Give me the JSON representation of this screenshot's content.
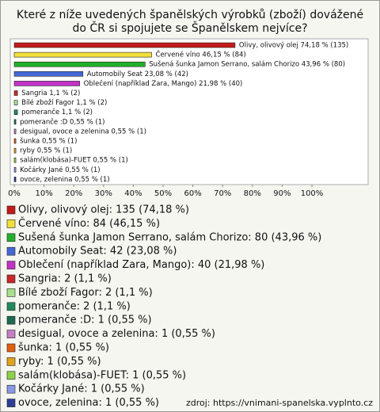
{
  "chart_data": {
    "type": "hbar",
    "title": "Které z níže uvedených španělských výrobků (zboží) dovážené do ČR si spojujete se Španělskem nejvíce?",
    "values": [
      74.18,
      46.15,
      43.96,
      23.08,
      21.98,
      1.1,
      1.1,
      1.1,
      0.55,
      0.55,
      0.55,
      0.55,
      0.55,
      0.55,
      0.55
    ],
    "value_labels": [
      "Olivy, olivový olej 74,18 % (135)",
      "Červené víno 46,15 % (84)",
      "Sušená šunka Jamon Serrano, salám Chorizo 43,96 % (80)",
      "Automobily Seat 23,08 % (42)",
      "Oblečení (například Zara, Mango) 21,98 % (40)",
      "Sangria 1,1 % (2)",
      "Bílé zboží Fagor 1,1 % (2)",
      "pomeranče 1,1 % (2)",
      "pomeranče :D 0,55 % (1)",
      "desigual, ovoce a zelenina 0,55 % (1)",
      "šunka 0,55 % (1)",
      "ryby 0,55 % (1)",
      "salám(klobása)-FUET 0,55 % (1)",
      "Kočárky Jané 0,55 % (1)",
      "ovoce, zelenina 0,55 % (1)"
    ],
    "legend_labels": [
      "Olivy, olivový olej: 135 (74,18 %)",
      "Červené víno: 84 (46,15 %)",
      "Sušená šunka Jamon Serrano, salám Chorizo: 80 (43,96 %)",
      "Automobily Seat: 42 (23,08 %)",
      "Oblečení (například Zara, Mango): 40 (21,98 %)",
      "Sangria: 2 (1,1 %)",
      "Bílé zboží Fagor: 2 (1,1 %)",
      "pomeranče: 2 (1,1 %)",
      "pomeranče :D: 1 (0,55 %)",
      "desigual, ovoce a zelenina: 1 (0,55 %)",
      "šunka: 1 (0,55 %)",
      "ryby: 1 (0,55 %)",
      "salám(klobása)-FUET: 1 (0,55 %)",
      "Kočárky Jané: 1 (0,55 %)",
      "ovoce, zelenina: 1 (0,55 %)"
    ],
    "colors": [
      "#c41a1a",
      "#f2e03a",
      "#22b02a",
      "#4468d8",
      "#c232c8",
      "#c82828",
      "#a6e08a",
      "#218a5e",
      "#1f6a52",
      "#c47ec4",
      "#e06010",
      "#e0a420",
      "#8ed04a",
      "#8898e2",
      "#2c3e98"
    ],
    "xlim": [
      0,
      100
    ],
    "xticks": [
      {
        "value": 0,
        "label": "0%"
      },
      {
        "value": 10,
        "label": "10%"
      },
      {
        "value": 20,
        "label": "20%"
      },
      {
        "value": 30,
        "label": "30%"
      },
      {
        "value": 40,
        "label": "40%"
      },
      {
        "value": 50,
        "label": "50%"
      },
      {
        "value": 60,
        "label": "60%"
      },
      {
        "value": 70,
        "label": "70%"
      },
      {
        "value": 80,
        "label": "80%"
      },
      {
        "value": 90,
        "label": "90%"
      },
      {
        "value": 100,
        "label": "100%"
      }
    ],
    "grid": false,
    "source": "zdroj: https://vnimani-spanelska.vyplnto.cz"
  }
}
